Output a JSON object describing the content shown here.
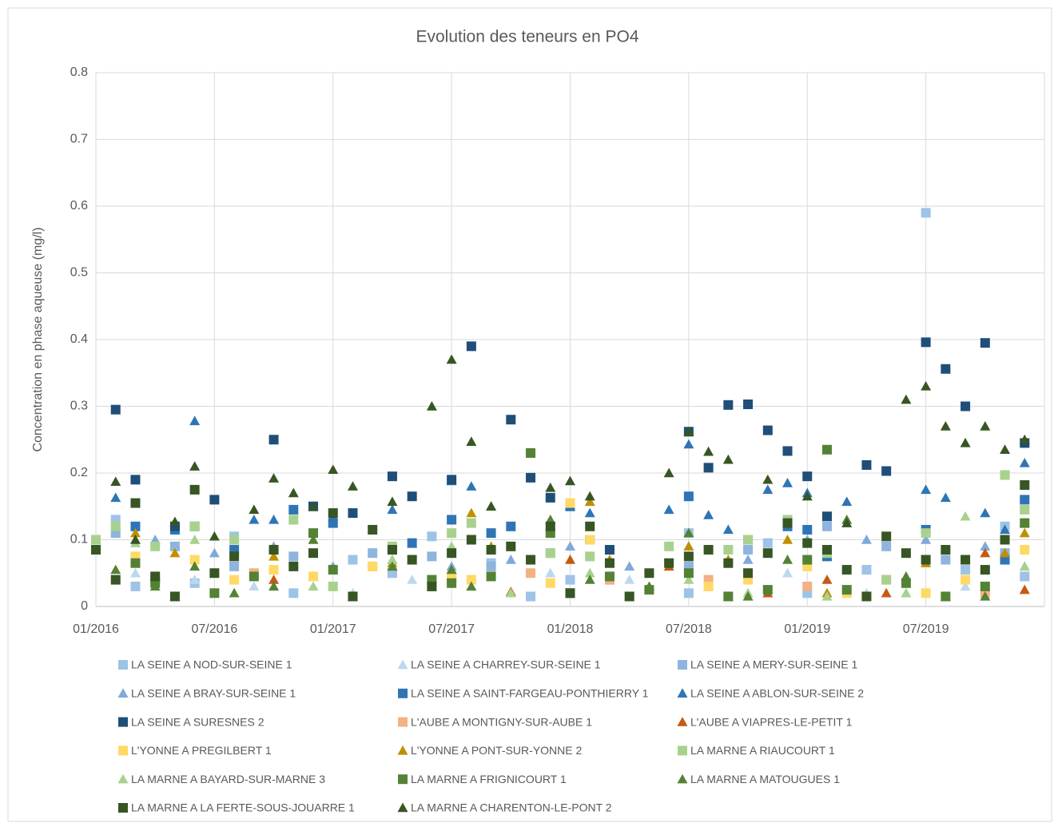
{
  "chart_data": {
    "type": "scatter",
    "title": "Evolution des teneurs en PO4",
    "ylabel": "Concentration en phase aqueuse (mg/l)",
    "xlim": [
      "2016-01",
      "2020-01"
    ],
    "xticks": [
      {
        "value": "2016-01",
        "label": "01/2016"
      },
      {
        "value": "2016-07",
        "label": "07/2016"
      },
      {
        "value": "2017-01",
        "label": "01/2017"
      },
      {
        "value": "2017-07",
        "label": "07/2017"
      },
      {
        "value": "2018-01",
        "label": "01/2018"
      },
      {
        "value": "2018-07",
        "label": "07/2018"
      },
      {
        "value": "2019-01",
        "label": "01/2019"
      },
      {
        "value": "2019-07",
        "label": "07/2019"
      }
    ],
    "ylim": [
      0,
      0.8
    ],
    "yticks": [
      0,
      0.1,
      0.2,
      0.3,
      0.4,
      0.5,
      0.6,
      0.7,
      0.8
    ],
    "grid": true,
    "legend": "bottom",
    "series": [
      {
        "name": "LA SEINE A NOD-SUR-SEINE 1",
        "color": "#9dc3e6",
        "marker": "square",
        "x": [
          "2016-02",
          "2016-03",
          "2016-06",
          "2016-08",
          "2016-11",
          "2017-02",
          "2017-04",
          "2017-06",
          "2017-09",
          "2017-11",
          "2018-01",
          "2018-04",
          "2018-07",
          "2018-07",
          "2018-11",
          "2019-01",
          "2019-04",
          "2019-07",
          "2019-09",
          "2019-11",
          "2019-12"
        ],
        "values": [
          0.13,
          0.03,
          0.035,
          0.105,
          0.02,
          0.07,
          0.05,
          0.105,
          0.065,
          0.015,
          0.04,
          0.015,
          0.11,
          0.02,
          0.095,
          0.02,
          0.055,
          0.59,
          0.055,
          0.12,
          0.045
        ]
      },
      {
        "name": "LA SEINE A CHARREY-SUR-SEINE 1",
        "color": "#bdd7ee",
        "marker": "triangle",
        "x": [
          "2016-03",
          "2016-06",
          "2016-09",
          "2017-02",
          "2017-05",
          "2017-08",
          "2017-12",
          "2018-04",
          "2018-08",
          "2018-12",
          "2019-04",
          "2019-09",
          "2019-12"
        ],
        "values": [
          0.05,
          0.04,
          0.03,
          0.02,
          0.04,
          0.03,
          0.05,
          0.04,
          0.03,
          0.05,
          0.02,
          0.03,
          0.06
        ]
      },
      {
        "name": "LA SEINE A MERY-SUR-SEINE 1",
        "color": "#8fb4de",
        "marker": "square",
        "x": [
          "2016-02",
          "2016-05",
          "2016-08",
          "2016-11",
          "2017-03",
          "2017-06",
          "2017-09",
          "2017-12",
          "2018-03",
          "2018-07",
          "2018-10",
          "2019-02",
          "2019-05",
          "2019-08",
          "2019-11"
        ],
        "values": [
          0.11,
          0.09,
          0.06,
          0.075,
          0.08,
          0.075,
          0.06,
          0.08,
          0.04,
          0.06,
          0.085,
          0.12,
          0.09,
          0.07,
          0.08
        ]
      },
      {
        "name": "LA SEINE A BRAY-SUR-SEINE 1",
        "color": "#7fa9d9",
        "marker": "triangle",
        "x": [
          "2016-04",
          "2016-07",
          "2016-10",
          "2017-01",
          "2017-04",
          "2017-07",
          "2017-10",
          "2018-01",
          "2018-04",
          "2018-07",
          "2018-10",
          "2019-01",
          "2019-04",
          "2019-07",
          "2019-10"
        ],
        "values": [
          0.1,
          0.08,
          0.09,
          0.06,
          0.07,
          0.06,
          0.07,
          0.09,
          0.06,
          0.09,
          0.07,
          0.1,
          0.1,
          0.1,
          0.09
        ]
      },
      {
        "name": "LA SEINE A SAINT-FARGEAU-PONTHIERRY 1",
        "color": "#2e75b6",
        "marker": "square",
        "x": [
          "2016-03",
          "2016-05",
          "2016-06",
          "2016-08",
          "2016-11",
          "2017-01",
          "2017-05",
          "2017-07",
          "2017-09",
          "2017-10",
          "2018-01",
          "2018-02",
          "2018-07",
          "2018-10",
          "2018-12",
          "2019-01",
          "2019-02",
          "2019-07",
          "2019-11",
          "2019-12"
        ],
        "values": [
          0.12,
          0.115,
          0.12,
          0.085,
          0.145,
          0.125,
          0.095,
          0.13,
          0.11,
          0.12,
          0.15,
          0.1,
          0.165,
          0.1,
          0.12,
          0.115,
          0.075,
          0.115,
          0.07,
          0.16
        ]
      },
      {
        "name": "LA SEINE A ABLON-SUR-SEINE 2",
        "color": "#2e75b6",
        "marker": "triangle",
        "x": [
          "2016-02",
          "2016-06",
          "2016-09",
          "2016-10",
          "2017-01",
          "2017-04",
          "2017-07",
          "2017-08",
          "2018-01",
          "2018-02",
          "2018-06",
          "2018-07",
          "2018-08",
          "2018-09",
          "2018-11",
          "2018-12",
          "2019-01",
          "2019-03",
          "2019-07",
          "2019-08",
          "2019-10",
          "2019-11",
          "2019-12"
        ],
        "values": [
          0.163,
          0.278,
          0.13,
          0.13,
          0.135,
          0.145,
          0.188,
          0.18,
          0.15,
          0.14,
          0.145,
          0.243,
          0.137,
          0.115,
          0.175,
          0.185,
          0.17,
          0.157,
          0.175,
          0.163,
          0.14,
          0.115,
          0.215
        ]
      },
      {
        "name": "LA SEINE A SURESNES 2",
        "color": "#1f4e79",
        "marker": "square",
        "x": [
          "2016-02",
          "2016-03",
          "2016-05",
          "2016-07",
          "2016-10",
          "2016-12",
          "2017-02",
          "2017-04",
          "2017-05",
          "2017-07",
          "2017-08",
          "2017-10",
          "2017-11",
          "2017-12",
          "2018-01",
          "2018-03",
          "2018-07",
          "2018-08",
          "2018-09",
          "2018-10",
          "2018-11",
          "2018-12",
          "2019-01",
          "2019-02",
          "2019-04",
          "2019-05",
          "2019-07",
          "2019-08",
          "2019-09",
          "2019-10",
          "2019-12"
        ],
        "values": [
          0.295,
          0.19,
          0.12,
          0.16,
          0.25,
          0.15,
          0.14,
          0.195,
          0.165,
          0.19,
          0.39,
          0.28,
          0.193,
          0.163,
          0.02,
          0.085,
          0.262,
          0.208,
          0.302,
          0.303,
          0.264,
          0.233,
          0.195,
          0.135,
          0.212,
          0.203,
          0.396,
          0.356,
          0.3,
          0.395,
          0.245
        ]
      },
      {
        "name": "L'AUBE A MONTIGNY-SUR-AUBE 1",
        "color": "#f4b183",
        "marker": "square",
        "x": [
          "2016-04",
          "2016-09",
          "2017-03",
          "2017-07",
          "2017-11",
          "2018-03",
          "2018-08",
          "2019-01",
          "2019-05",
          "2019-10"
        ],
        "values": [
          0.04,
          0.05,
          0.06,
          0.04,
          0.05,
          0.04,
          0.04,
          0.03,
          0.04,
          0.02
        ]
      },
      {
        "name": "L'AUBE A VIAPRES-LE-PETIT 1",
        "color": "#c55a11",
        "marker": "triangle",
        "x": [
          "2016-05",
          "2016-10",
          "2016-12",
          "2017-04",
          "2017-10",
          "2018-01",
          "2018-06",
          "2018-11",
          "2019-02",
          "2019-05",
          "2019-10",
          "2019-12"
        ],
        "values": [
          0.015,
          0.04,
          0.045,
          0.06,
          0.022,
          0.07,
          0.06,
          0.02,
          0.04,
          0.02,
          0.08,
          0.025
        ]
      },
      {
        "name": "L'YONNE A PREGILBERT 1",
        "color": "#ffd966",
        "marker": "square",
        "x": [
          "2016-03",
          "2016-06",
          "2016-08",
          "2016-10",
          "2016-12",
          "2017-03",
          "2017-07",
          "2017-08",
          "2017-12",
          "2018-01",
          "2018-02",
          "2018-08",
          "2018-10",
          "2019-01",
          "2019-03",
          "2019-07",
          "2019-09",
          "2019-12"
        ],
        "values": [
          0.075,
          0.07,
          0.04,
          0.055,
          0.045,
          0.06,
          0.045,
          0.04,
          0.035,
          0.155,
          0.1,
          0.03,
          0.04,
          0.06,
          0.02,
          0.02,
          0.04,
          0.085
        ]
      },
      {
        "name": "L'YONNE A PONT-SUR-YONNE 2",
        "color": "#bf9000",
        "marker": "triangle",
        "x": [
          "2016-03",
          "2016-05",
          "2016-10",
          "2017-04",
          "2017-08",
          "2017-09",
          "2018-02",
          "2018-03",
          "2018-07",
          "2018-09",
          "2018-12",
          "2019-02",
          "2019-07",
          "2019-11",
          "2019-12"
        ],
        "values": [
          0.11,
          0.08,
          0.075,
          0.065,
          0.14,
          0.09,
          0.157,
          0.07,
          0.09,
          0.07,
          0.1,
          0.02,
          0.065,
          0.08,
          0.11
        ]
      },
      {
        "name": "LA MARNE A RIAUCOURT 1",
        "color": "#a9d18e",
        "marker": "square",
        "x": [
          "2016-01",
          "2016-02",
          "2016-04",
          "2016-06",
          "2016-08",
          "2016-11",
          "2017-01",
          "2017-04",
          "2017-07",
          "2017-08",
          "2017-12",
          "2018-02",
          "2018-06",
          "2018-09",
          "2018-10",
          "2018-12",
          "2019-02",
          "2019-05",
          "2019-07",
          "2019-11",
          "2019-12"
        ],
        "values": [
          0.1,
          0.12,
          0.09,
          0.12,
          0.1,
          0.13,
          0.03,
          0.09,
          0.11,
          0.125,
          0.08,
          0.075,
          0.09,
          0.085,
          0.1,
          0.13,
          0.08,
          0.04,
          0.11,
          0.197,
          0.145
        ]
      },
      {
        "name": "LA MARNE A BAYARD-SUR-MARNE 3",
        "color": "#a9d18e",
        "marker": "triangle",
        "x": [
          "2016-03",
          "2016-06",
          "2016-08",
          "2016-12",
          "2017-04",
          "2017-07",
          "2017-10",
          "2018-02",
          "2018-07",
          "2018-10",
          "2019-02",
          "2019-06",
          "2019-09",
          "2019-12"
        ],
        "values": [
          0.095,
          0.1,
          0.02,
          0.03,
          0.07,
          0.09,
          0.02,
          0.05,
          0.04,
          0.02,
          0.015,
          0.02,
          0.135,
          0.06
        ]
      },
      {
        "name": "LA MARNE A FRIGNICOURT 1",
        "color": "#548235",
        "marker": "square",
        "x": [
          "2016-03",
          "2016-04",
          "2016-07",
          "2016-09",
          "2016-12",
          "2017-01",
          "2017-04",
          "2017-06",
          "2017-07",
          "2017-09",
          "2017-11",
          "2017-12",
          "2018-03",
          "2018-05",
          "2018-07",
          "2018-09",
          "2018-11",
          "2019-01",
          "2019-02",
          "2019-03",
          "2019-06",
          "2019-08",
          "2019-10",
          "2019-12"
        ],
        "values": [
          0.065,
          0.035,
          0.02,
          0.045,
          0.11,
          0.055,
          0.085,
          0.04,
          0.035,
          0.045,
          0.23,
          0.11,
          0.045,
          0.025,
          0.05,
          0.015,
          0.025,
          0.07,
          0.235,
          0.025,
          0.035,
          0.015,
          0.03,
          0.125
        ]
      },
      {
        "name": "LA MARNE A MATOUGUES 1",
        "color": "#548235",
        "marker": "triangle",
        "x": [
          "2016-02",
          "2016-04",
          "2016-06",
          "2016-08",
          "2016-10",
          "2016-12",
          "2017-02",
          "2017-04",
          "2017-07",
          "2017-08",
          "2017-09",
          "2017-12",
          "2018-02",
          "2018-05",
          "2018-07",
          "2018-09",
          "2018-10",
          "2018-12",
          "2019-03",
          "2019-06",
          "2019-08",
          "2019-10",
          "2019-12"
        ],
        "values": [
          0.055,
          0.03,
          0.06,
          0.02,
          0.03,
          0.1,
          0.015,
          0.06,
          0.055,
          0.03,
          0.15,
          0.13,
          0.04,
          0.03,
          0.11,
          0.015,
          0.015,
          0.07,
          0.13,
          0.045,
          0.015,
          0.015,
          0.125
        ]
      },
      {
        "name": "LA MARNE A LA FERTE-SOUS-JOUARRE 1",
        "color": "#375623",
        "marker": "square",
        "x": [
          "2016-01",
          "2016-02",
          "2016-03",
          "2016-04",
          "2016-05",
          "2016-06",
          "2016-07",
          "2016-08",
          "2016-10",
          "2016-11",
          "2016-12",
          "2017-01",
          "2017-02",
          "2017-03",
          "2017-04",
          "2017-05",
          "2017-06",
          "2017-07",
          "2017-08",
          "2017-09",
          "2017-10",
          "2017-11",
          "2017-12",
          "2018-01",
          "2018-02",
          "2018-03",
          "2018-04",
          "2018-05",
          "2018-06",
          "2018-07",
          "2018-08",
          "2018-09",
          "2018-10",
          "2018-11",
          "2018-12",
          "2019-01",
          "2019-02",
          "2019-03",
          "2019-04",
          "2019-05",
          "2019-06",
          "2019-07",
          "2019-08",
          "2019-09",
          "2019-10",
          "2019-11",
          "2019-12"
        ],
        "values": [
          0.085,
          0.04,
          0.155,
          0.045,
          0.015,
          0.175,
          0.05,
          0.075,
          0.085,
          0.06,
          0.08,
          0.14,
          0.015,
          0.115,
          0.085,
          0.07,
          0.03,
          0.08,
          0.1,
          0.085,
          0.09,
          0.07,
          0.12,
          0.02,
          0.12,
          0.065,
          0.015,
          0.05,
          0.065,
          0.075,
          0.085,
          0.065,
          0.05,
          0.08,
          0.125,
          0.095,
          0.085,
          0.055,
          0.015,
          0.105,
          0.08,
          0.07,
          0.085,
          0.07,
          0.055,
          0.1,
          0.182
        ]
      },
      {
        "name": "LA MARNE A CHARENTON-LE-PONT 2",
        "color": "#375623",
        "marker": "triangle",
        "x": [
          "2016-02",
          "2016-03",
          "2016-05",
          "2016-06",
          "2016-07",
          "2016-09",
          "2016-10",
          "2016-11",
          "2016-12",
          "2017-01",
          "2017-02",
          "2017-04",
          "2017-06",
          "2017-07",
          "2017-08",
          "2017-09",
          "2017-12",
          "2018-01",
          "2018-02",
          "2018-06",
          "2018-07",
          "2018-08",
          "2018-09",
          "2018-11",
          "2019-01",
          "2019-03",
          "2019-06",
          "2019-07",
          "2019-08",
          "2019-09",
          "2019-10",
          "2019-11",
          "2019-12"
        ],
        "values": [
          0.187,
          0.1,
          0.127,
          0.21,
          0.105,
          0.145,
          0.192,
          0.17,
          0.15,
          0.205,
          0.18,
          0.157,
          0.3,
          0.37,
          0.247,
          0.15,
          0.178,
          0.188,
          0.165,
          0.2,
          0.262,
          0.232,
          0.22,
          0.19,
          0.165,
          0.125,
          0.31,
          0.33,
          0.27,
          0.245,
          0.27,
          0.235,
          0.25
        ]
      }
    ]
  }
}
